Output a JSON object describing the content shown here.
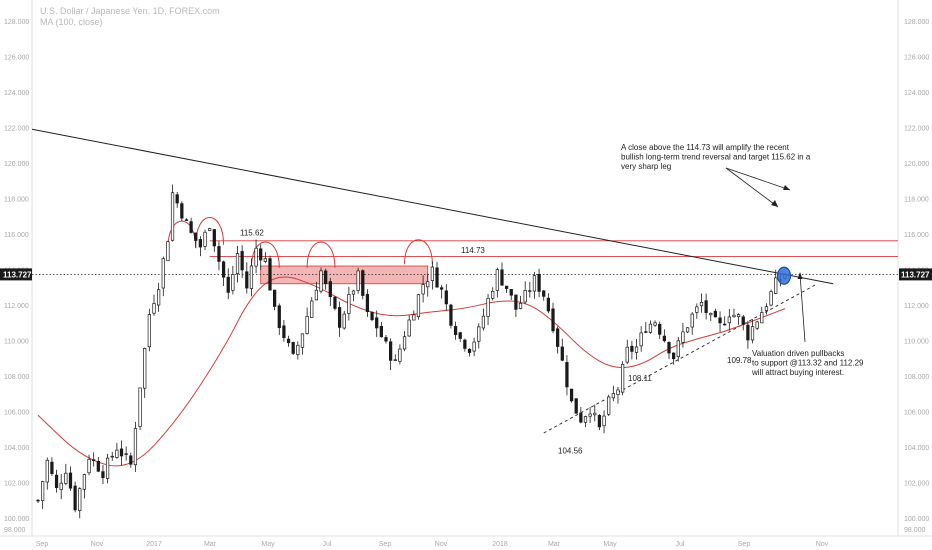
{
  "header": {
    "title": "U.S. Dollar / Japanese Yen, 1D, FOREX.com",
    "indicator": "MA (100, close)"
  },
  "colors": {
    "candles": "#1a1a1a",
    "ma": "#d63a3a",
    "resistance": "#d63a3a",
    "zone_fill": "#f2a8a8",
    "trendline": "#222222",
    "highlight": "#2f6fd6",
    "price_tag_bg": "#1a1a1a"
  },
  "chart_data": {
    "type": "candlestick",
    "y_axis": {
      "min": 99.0,
      "max": 128.5,
      "ticks": [
        "100.000",
        "102.000",
        "104.000",
        "106.000",
        "108.000",
        "110.000",
        "112.000",
        "114.000",
        "116.000",
        "118.000",
        "120.000",
        "122.000",
        "124.000",
        "126.000",
        "128.000"
      ],
      "extra_tick_labels": [
        "98.000",
        "126.000"
      ],
      "position": "both-sides",
      "current_price": "113.727"
    },
    "x_axis": {
      "ticks": [
        "Sep",
        "Nov",
        "2017",
        "Mar",
        "May",
        "Jul",
        "Sep",
        "Nov",
        "2018",
        "Mar",
        "May",
        "Jul",
        "Sep",
        "Nov"
      ]
    },
    "price_path": [
      [
        0,
        101.0
      ],
      [
        2,
        103.2
      ],
      [
        4,
        101.6
      ],
      [
        6,
        102.8
      ],
      [
        8,
        100.7
      ],
      [
        11,
        103.5
      ],
      [
        14,
        102.6
      ],
      [
        17,
        104.0
      ],
      [
        20,
        103.0
      ],
      [
        22,
        107.5
      ],
      [
        24,
        111.5
      ],
      [
        26,
        113.2
      ],
      [
        28,
        115.8
      ],
      [
        29,
        118.3
      ],
      [
        31,
        117.2
      ],
      [
        33,
        116.0
      ],
      [
        35,
        115.3
      ],
      [
        37,
        116.6
      ],
      [
        39,
        114.5
      ],
      [
        41,
        112.6
      ],
      [
        43,
        114.9
      ],
      [
        45,
        113.0
      ],
      [
        47,
        115.2
      ],
      [
        49,
        114.5
      ],
      [
        51,
        111.6
      ],
      [
        53,
        110.3
      ],
      [
        55,
        109.0
      ],
      [
        57,
        110.5
      ],
      [
        59,
        112.3
      ],
      [
        61,
        113.9
      ],
      [
        63,
        112.2
      ],
      [
        65,
        111.0
      ],
      [
        67,
        112.3
      ],
      [
        69,
        113.6
      ],
      [
        71,
        111.4
      ],
      [
        73,
        110.8
      ],
      [
        75,
        109.7
      ],
      [
        77,
        108.7
      ],
      [
        79,
        110.4
      ],
      [
        81,
        111.8
      ],
      [
        83,
        113.2
      ],
      [
        85,
        113.9
      ],
      [
        87,
        112.8
      ],
      [
        89,
        111.2
      ],
      [
        91,
        110.1
      ],
      [
        93,
        109.6
      ],
      [
        95,
        110.5
      ],
      [
        97,
        112.3
      ],
      [
        99,
        113.8
      ],
      [
        101,
        113.0
      ],
      [
        103,
        111.8
      ],
      [
        105,
        112.5
      ],
      [
        107,
        113.4
      ],
      [
        109,
        112.6
      ],
      [
        111,
        110.9
      ],
      [
        113,
        108.8
      ],
      [
        115,
        106.5
      ],
      [
        117,
        105.6
      ],
      [
        119,
        106.2
      ],
      [
        121,
        105.0
      ],
      [
        123,
        106.5
      ],
      [
        125,
        107.3
      ],
      [
        127,
        109.4
      ],
      [
        129,
        109.6
      ],
      [
        131,
        110.8
      ],
      [
        133,
        111.1
      ],
      [
        135,
        110.1
      ],
      [
        137,
        109.1
      ],
      [
        139,
        110.4
      ],
      [
        141,
        111.4
      ],
      [
        143,
        112.1
      ],
      [
        145,
        111.2
      ],
      [
        147,
        110.8
      ],
      [
        149,
        111.6
      ],
      [
        151,
        111.3
      ],
      [
        153,
        110.3
      ],
      [
        155,
        111.2
      ],
      [
        157,
        112.1
      ],
      [
        159,
        113.2
      ],
      [
        161,
        113.727
      ]
    ],
    "ma_100": [
      [
        0,
        105.8
      ],
      [
        10,
        103.3
      ],
      [
        20,
        102.7
      ],
      [
        30,
        105.5
      ],
      [
        40,
        109.5
      ],
      [
        46,
        112.6
      ],
      [
        52,
        113.8
      ],
      [
        60,
        113.1
      ],
      [
        68,
        111.9
      ],
      [
        76,
        111.3
      ],
      [
        84,
        111.6
      ],
      [
        92,
        111.8
      ],
      [
        100,
        112.3
      ],
      [
        106,
        112.1
      ],
      [
        112,
        110.9
      ],
      [
        118,
        109.3
      ],
      [
        124,
        108.4
      ],
      [
        130,
        108.6
      ],
      [
        136,
        109.6
      ],
      [
        142,
        110.1
      ],
      [
        148,
        110.5
      ],
      [
        154,
        111.1
      ],
      [
        158,
        111.5
      ],
      [
        161,
        111.8
      ]
    ],
    "resistance_levels": [
      {
        "label": "115.62",
        "value": 115.62
      },
      {
        "label": "114.73",
        "value": 114.73
      }
    ],
    "resistance_zone": {
      "x_start": 48,
      "x_end": 84,
      "y_low": 113.2,
      "y_high": 114.2
    },
    "downtrend_line": {
      "from": [
        0,
        121.9
      ],
      "to": [
        161,
        113.727
      ],
      "extends_to_axis": true,
      "ends_at": 113.2
    },
    "uptrend_line": {
      "from": [
        109,
        104.8
      ],
      "to": [
        168,
        113.2
      ],
      "style": "dashed"
    },
    "price_line": {
      "value": 113.727,
      "style": "dotted"
    },
    "arcs": [
      {
        "center": 31,
        "low": 115.2,
        "high": 116.9,
        "width": 6
      },
      {
        "center": 37,
        "low": 115.4,
        "high": 117.1,
        "width": 6
      },
      {
        "center": 49,
        "low": 114.1,
        "high": 115.7,
        "width": 6
      },
      {
        "center": 61,
        "low": 114.1,
        "high": 115.7,
        "width": 6
      },
      {
        "center": 82,
        "low": 114.3,
        "high": 115.8,
        "width": 6
      }
    ],
    "highlight_ellipse": {
      "x": 150,
      "y": 113.65
    },
    "annotations": [
      {
        "text": "115.62",
        "x": 40,
        "y": 116.1
      },
      {
        "text": "114.73",
        "x": 82,
        "y": 115.1
      },
      {
        "text": "104.56",
        "x": 107,
        "y": 103.8
      },
      {
        "text": "108.11",
        "x": 119,
        "y": 107.9
      },
      {
        "text": "109.78",
        "x": 138,
        "y": 108.9
      }
    ],
    "callout_top": [
      "A close above the 114.73 will amplify the recent",
      "bullish long-term trend reversal and target 115.62 in a",
      "very sharp leg"
    ],
    "callout_bottom": [
      "Valuation driven pullbacks",
      "to support @113.32 and 112.29",
      "will attract buying interest."
    ]
  }
}
